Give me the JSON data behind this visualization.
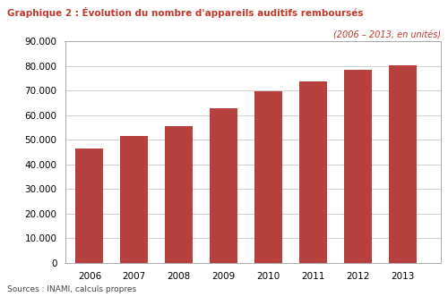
{
  "title": "Graphique 2 : Évolution du nombre d'appareils auditifs remboursés",
  "subtitle": "(2006 – 2013, en unités)",
  "source": "Sources : INAMI, calculs propres",
  "years": [
    2006,
    2007,
    2008,
    2009,
    2010,
    2011,
    2012,
    2013
  ],
  "values": [
    46500,
    51700,
    55700,
    63000,
    69700,
    73700,
    78500,
    80200
  ],
  "bar_color": "#b5403e",
  "background_color": "#ffffff",
  "plot_bg_color": "#ffffff",
  "title_color": "#c0392b",
  "subtitle_color": "#c0392b",
  "source_color": "#444444",
  "grid_color": "#c8c8c8",
  "border_color": "#aaaaaa",
  "ylim": [
    0,
    90000
  ],
  "yticks": [
    0,
    10000,
    20000,
    30000,
    40000,
    50000,
    60000,
    70000,
    80000,
    90000
  ]
}
